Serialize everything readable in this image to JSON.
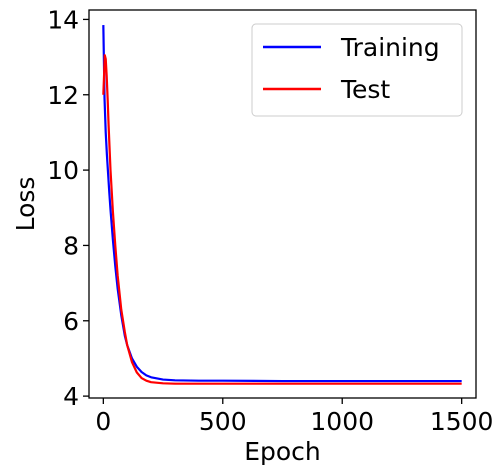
{
  "chart_data": {
    "type": "line",
    "title": "",
    "xlabel": "Epoch",
    "ylabel": "Loss",
    "xlim": [
      -60,
      1560
    ],
    "ylim": [
      3.95,
      14.25
    ],
    "xticks": [
      0,
      500,
      1000,
      1500
    ],
    "yticks": [
      4,
      6,
      8,
      10,
      12,
      14
    ],
    "xtick_labels": [
      "0",
      "500",
      "1000",
      "1500"
    ],
    "ytick_labels": [
      "4",
      "6",
      "8",
      "10",
      "12",
      "14"
    ],
    "grid": false,
    "legend_position": "top-right",
    "series": [
      {
        "name": "Training",
        "color": "#0000ff",
        "x": [
          0,
          5,
          10,
          15,
          20,
          25,
          30,
          40,
          50,
          60,
          75,
          90,
          100,
          120,
          140,
          160,
          180,
          200,
          250,
          300,
          400,
          500,
          750,
          1000,
          1250,
          1500
        ],
        "y": [
          13.85,
          11.9,
          11.0,
          10.4,
          9.9,
          9.4,
          8.95,
          8.15,
          7.45,
          6.85,
          6.15,
          5.6,
          5.35,
          5.0,
          4.78,
          4.64,
          4.55,
          4.5,
          4.44,
          4.42,
          4.41,
          4.41,
          4.4,
          4.4,
          4.4,
          4.4
        ]
      },
      {
        "name": "Test",
        "color": "#ff0000",
        "x": [
          0,
          3,
          6,
          10,
          14,
          18,
          22,
          26,
          30,
          40,
          50,
          60,
          75,
          90,
          100,
          120,
          140,
          160,
          180,
          200,
          250,
          300,
          400,
          500,
          750,
          1000,
          1250,
          1500
        ],
        "y": [
          12.0,
          12.5,
          13.05,
          12.95,
          12.5,
          11.9,
          11.2,
          10.6,
          10.0,
          8.9,
          8.0,
          7.2,
          6.3,
          5.7,
          5.35,
          4.9,
          4.63,
          4.48,
          4.41,
          4.37,
          4.34,
          4.33,
          4.33,
          4.33,
          4.33,
          4.33,
          4.33,
          4.33
        ]
      }
    ]
  }
}
